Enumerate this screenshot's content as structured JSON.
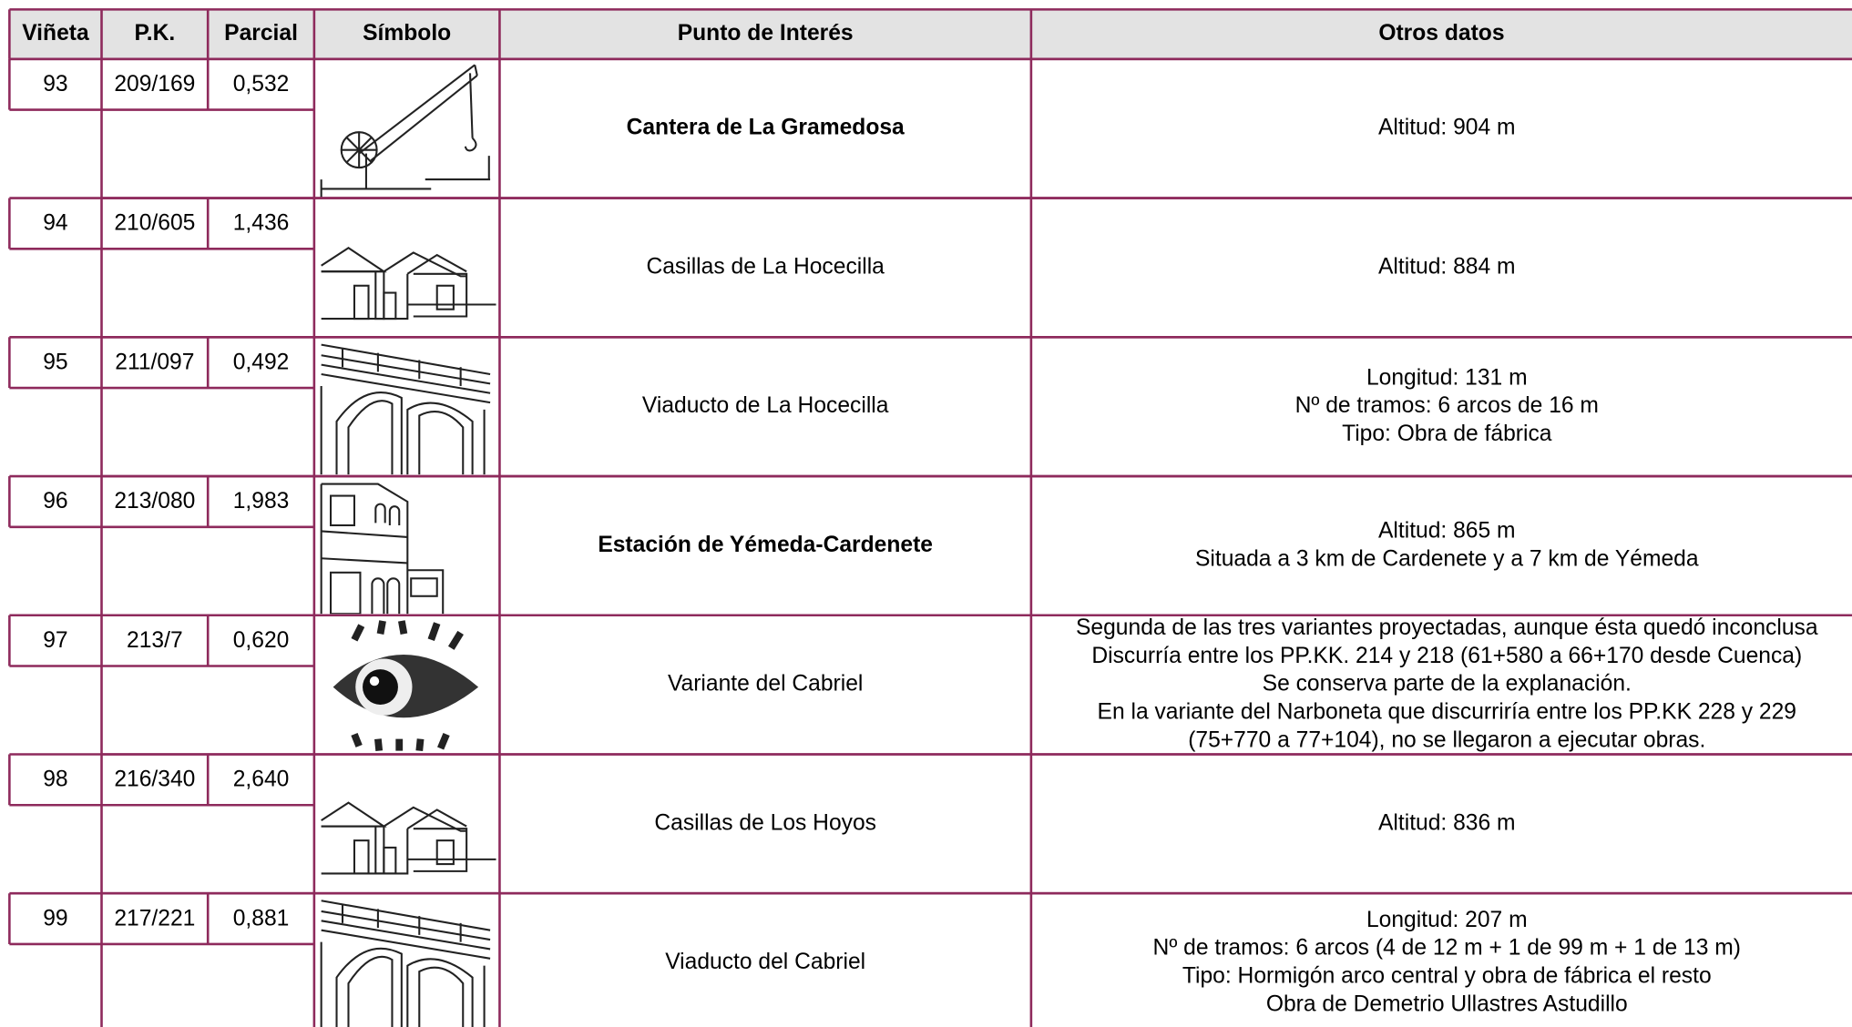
{
  "table": {
    "header": [
      "Viñeta",
      "P.K.",
      "Parcial",
      "Símbolo",
      "Punto de Interés",
      "Otros datos"
    ],
    "rows": [
      {
        "vineta": "93",
        "pk": "209/169",
        "parcial": "0,532",
        "punto": "Cantera de La Gramedosa",
        "bold": true,
        "otros": [
          "Altitud: 904 m"
        ]
      },
      {
        "vineta": "94",
        "pk": "210/605",
        "parcial": "1,436",
        "punto": "Casillas de La Hocecilla",
        "otros": [
          "Altitud: 884 m"
        ]
      },
      {
        "vineta": "95",
        "pk": "211/097",
        "parcial": "0,492",
        "punto": "Viaducto de La Hocecilla",
        "otros": [
          "Longitud: 131 m",
          "Nº de tramos: 6 arcos de 16 m",
          "Tipo: Obra de fábrica"
        ]
      },
      {
        "vineta": "96",
        "pk": "213/080",
        "parcial": "1,983",
        "punto": "Estación de Yémeda-Cardenete",
        "bold": true,
        "otros": [
          "Altitud: 865 m",
          "Situada a 3 km de Cardenete y a 7 km de Yémeda"
        ]
      },
      {
        "vineta": "97",
        "pk": "213/7",
        "parcial": "0,620",
        "punto": "Variante del Cabriel",
        "color": "#e0198c",
        "otros": [
          "Segunda de las tres variantes proyectadas, aunque ésta quedó inconclusa",
          "Discurría entre los PP.KK. 214 y 218 (61+580 a 66+170 desde Cuenca)",
          "Se conserva parte de la explanación.",
          "En la variante del Narboneta que discurriría entre los PP.KK 228 y 229",
          "(75+770 a 77+104), no se llegaron a ejecutar obras."
        ]
      },
      {
        "vineta": "98",
        "pk": "216/340",
        "parcial": "2,640",
        "punto": "Casillas de Los Hoyos",
        "otros": [
          "Altitud: 836 m"
        ]
      },
      {
        "vineta": "99",
        "pk": "217/221",
        "parcial": "0,881",
        "punto": "Viaducto del Cabriel",
        "otros": [
          "Longitud: 207 m",
          "Nº de tramos: 6 arcos (4 de 12 m + 1 de 99 m + 1 de 13 m)",
          "Tipo: Hormigón arco central y obra de fábrica el resto",
          "Obra de Demetrio Ullastres Astudillo"
        ]
      }
    ]
  }
}
